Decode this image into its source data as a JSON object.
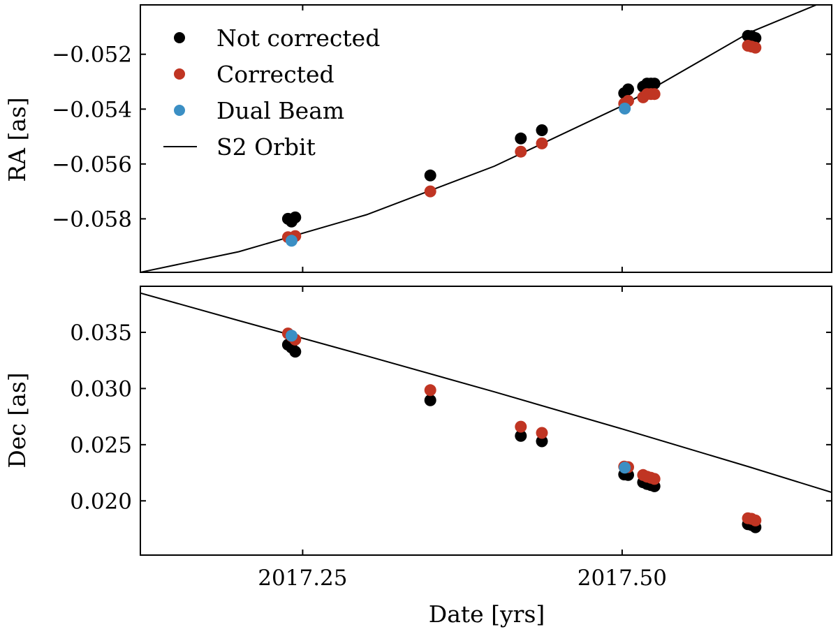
{
  "chart_data": [
    {
      "type": "scatter",
      "panel": "ra",
      "ylabel": "RA [as]",
      "xlabel": "",
      "xlim": [
        2017.123,
        2017.664
      ],
      "ylim": [
        -0.05995,
        -0.0502
      ],
      "yticks": [
        -0.058,
        -0.056,
        -0.054,
        -0.052
      ],
      "ytick_labels": [
        "−0.058",
        "−0.056",
        "−0.054",
        "−0.052"
      ],
      "xticks": [
        2017.25,
        2017.5
      ],
      "xtick_labels": [
        "",
        ""
      ],
      "legend": {
        "position": "top-left",
        "entries": [
          {
            "label": "Not corrected",
            "series": "not_corrected"
          },
          {
            "label": "Corrected",
            "series": "corrected"
          },
          {
            "label": "Dual Beam",
            "series": "dual_beam"
          },
          {
            "label": "S2 Orbit",
            "series": "orbit"
          }
        ]
      },
      "series": [
        {
          "name": "Not corrected",
          "key": "not_corrected",
          "color": "#000000",
          "x": [
            2017.2385,
            2017.2413,
            2017.2442,
            2017.3499,
            2017.4207,
            2017.4372,
            2017.5016,
            2017.5047,
            2017.5164,
            2017.5195,
            2017.5226,
            2017.5253,
            2017.5984,
            2017.6012,
            2017.6043
          ],
          "y": [
            -0.058,
            -0.0581,
            -0.05795,
            -0.05642,
            -0.05507,
            -0.05477,
            -0.05342,
            -0.05328,
            -0.05318,
            -0.05307,
            -0.05307,
            -0.05307,
            -0.05133,
            -0.05134,
            -0.05141
          ]
        },
        {
          "name": "Corrected",
          "key": "corrected",
          "color": "#c03523",
          "x": [
            2017.2385,
            2017.2413,
            2017.2442,
            2017.3499,
            2017.4207,
            2017.4372,
            2017.5016,
            2017.5047,
            2017.5164,
            2017.5195,
            2017.5226,
            2017.5253,
            2017.5984,
            2017.6012,
            2017.6043
          ],
          "y": [
            -0.05867,
            -0.05875,
            -0.05863,
            -0.057,
            -0.05555,
            -0.05525,
            -0.0538,
            -0.0537,
            -0.05357,
            -0.05345,
            -0.05345,
            -0.05345,
            -0.05169,
            -0.05172,
            -0.05176
          ]
        },
        {
          "name": "Dual Beam",
          "key": "dual_beam",
          "color": "#3b8fc4",
          "x": [
            2017.2413,
            2017.5021
          ],
          "y": [
            -0.0588,
            -0.05398
          ]
        }
      ],
      "orbit": {
        "name": "S2 Orbit",
        "color": "#000000",
        "x": [
          2017.123,
          2017.2,
          2017.3,
          2017.4,
          2017.5,
          2017.6,
          2017.652
        ],
        "y": [
          -0.05995,
          -0.0592,
          -0.05785,
          -0.05608,
          -0.05388,
          -0.0512,
          -0.0502
        ]
      }
    },
    {
      "type": "scatter",
      "panel": "dec",
      "ylabel": "Dec [as]",
      "xlabel": "Date [yrs]",
      "xlim": [
        2017.123,
        2017.664
      ],
      "ylim": [
        0.01517,
        0.0391
      ],
      "yticks": [
        0.02,
        0.025,
        0.03,
        0.035
      ],
      "ytick_labels": [
        "0.020",
        "0.025",
        "0.030",
        "0.035"
      ],
      "xticks": [
        2017.25,
        2017.5
      ],
      "xtick_labels": [
        "2017.25",
        "2017.50"
      ],
      "series": [
        {
          "name": "Not corrected",
          "key": "not_corrected",
          "color": "#000000",
          "x": [
            2017.2385,
            2017.2413,
            2017.2442,
            2017.3499,
            2017.4207,
            2017.4372,
            2017.5016,
            2017.5047,
            2017.5164,
            2017.5195,
            2017.5226,
            2017.5253,
            2017.5984,
            2017.6012,
            2017.6043
          ],
          "y": [
            0.0339,
            0.03365,
            0.03328,
            0.02895,
            0.02578,
            0.0253,
            0.02235,
            0.0223,
            0.02165,
            0.0215,
            0.0214,
            0.0213,
            0.01792,
            0.01785,
            0.01765
          ]
        },
        {
          "name": "Corrected",
          "key": "corrected",
          "color": "#c03523",
          "x": [
            2017.2385,
            2017.2413,
            2017.2442,
            2017.3499,
            2017.4207,
            2017.4372,
            2017.5016,
            2017.5047,
            2017.5164,
            2017.5195,
            2017.5226,
            2017.5253,
            2017.5984,
            2017.6012,
            2017.6043
          ],
          "y": [
            0.0349,
            0.03465,
            0.03435,
            0.02985,
            0.0266,
            0.02605,
            0.02305,
            0.023,
            0.0223,
            0.02215,
            0.02205,
            0.02195,
            0.01845,
            0.0184,
            0.01825
          ]
        },
        {
          "name": "Dual Beam",
          "key": "dual_beam",
          "color": "#3b8fc4",
          "x": [
            2017.2413,
            2017.5021
          ],
          "y": [
            0.0347,
            0.02295
          ]
        }
      ],
      "orbit": {
        "name": "S2 Orbit",
        "color": "#000000",
        "x": [
          2017.123,
          2017.2,
          2017.3,
          2017.4,
          2017.5,
          2017.6,
          2017.664
        ],
        "y": [
          0.0385,
          0.03605,
          0.0329,
          0.0297,
          0.0264,
          0.023,
          0.02075
        ]
      }
    }
  ]
}
